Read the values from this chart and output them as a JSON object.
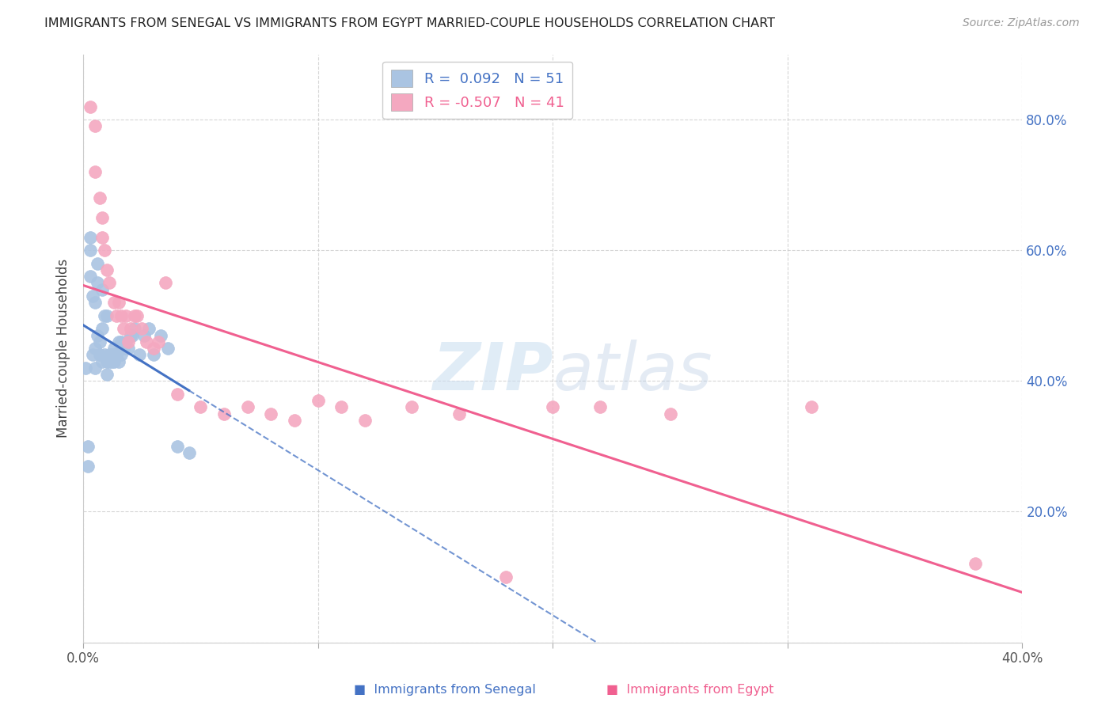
{
  "title": "IMMIGRANTS FROM SENEGAL VS IMMIGRANTS FROM EGYPT MARRIED-COUPLE HOUSEHOLDS CORRELATION CHART",
  "source": "Source: ZipAtlas.com",
  "ylabel": "Married-couple Households",
  "xlim": [
    0.0,
    0.4
  ],
  "ylim": [
    0.0,
    0.9
  ],
  "x_ticks": [
    0.0,
    0.1,
    0.2,
    0.3,
    0.4
  ],
  "x_tick_labels": [
    "0.0%",
    "",
    "",
    "",
    "40.0%"
  ],
  "y_ticks": [
    0.0,
    0.2,
    0.4,
    0.6,
    0.8
  ],
  "y_tick_labels_right": [
    "",
    "20.0%",
    "40.0%",
    "60.0%",
    "80.0%"
  ],
  "legend_R1": "0.092",
  "legend_N1": "51",
  "legend_R2": "-0.507",
  "legend_N2": "41",
  "color_senegal": "#aac4e2",
  "color_egypt": "#f4a8c0",
  "color_senegal_line": "#4472c4",
  "color_egypt_line": "#f06090",
  "color_right_axis": "#4472c4",
  "legend_label1": "Immigrants from Senegal",
  "legend_label2": "Immigrants from Egypt",
  "senegal_x": [
    0.001,
    0.002,
    0.002,
    0.003,
    0.003,
    0.003,
    0.004,
    0.004,
    0.005,
    0.005,
    0.005,
    0.006,
    0.006,
    0.006,
    0.007,
    0.007,
    0.008,
    0.008,
    0.008,
    0.009,
    0.009,
    0.01,
    0.01,
    0.01,
    0.011,
    0.011,
    0.012,
    0.012,
    0.013,
    0.013,
    0.013,
    0.014,
    0.014,
    0.015,
    0.015,
    0.016,
    0.016,
    0.017,
    0.018,
    0.019,
    0.02,
    0.021,
    0.022,
    0.024,
    0.026,
    0.028,
    0.03,
    0.033,
    0.036,
    0.04,
    0.045
  ],
  "senegal_y": [
    0.42,
    0.27,
    0.3,
    0.62,
    0.6,
    0.56,
    0.53,
    0.44,
    0.52,
    0.45,
    0.42,
    0.58,
    0.55,
    0.47,
    0.46,
    0.44,
    0.54,
    0.48,
    0.43,
    0.5,
    0.44,
    0.5,
    0.43,
    0.41,
    0.44,
    0.43,
    0.44,
    0.43,
    0.45,
    0.44,
    0.43,
    0.44,
    0.44,
    0.46,
    0.43,
    0.46,
    0.44,
    0.45,
    0.46,
    0.45,
    0.47,
    0.47,
    0.48,
    0.44,
    0.47,
    0.48,
    0.44,
    0.47,
    0.45,
    0.3,
    0.29
  ],
  "egypt_x": [
    0.003,
    0.005,
    0.005,
    0.007,
    0.008,
    0.008,
    0.009,
    0.01,
    0.011,
    0.013,
    0.014,
    0.015,
    0.016,
    0.017,
    0.018,
    0.019,
    0.02,
    0.022,
    0.023,
    0.025,
    0.027,
    0.03,
    0.032,
    0.035,
    0.04,
    0.05,
    0.06,
    0.07,
    0.08,
    0.09,
    0.1,
    0.11,
    0.12,
    0.14,
    0.16,
    0.18,
    0.2,
    0.22,
    0.25,
    0.31,
    0.38
  ],
  "egypt_y": [
    0.82,
    0.79,
    0.72,
    0.68,
    0.65,
    0.62,
    0.6,
    0.57,
    0.55,
    0.52,
    0.5,
    0.52,
    0.5,
    0.48,
    0.5,
    0.46,
    0.48,
    0.5,
    0.5,
    0.48,
    0.46,
    0.45,
    0.46,
    0.55,
    0.38,
    0.36,
    0.35,
    0.36,
    0.35,
    0.34,
    0.37,
    0.36,
    0.34,
    0.36,
    0.35,
    0.1,
    0.36,
    0.36,
    0.35,
    0.36,
    0.12
  ]
}
